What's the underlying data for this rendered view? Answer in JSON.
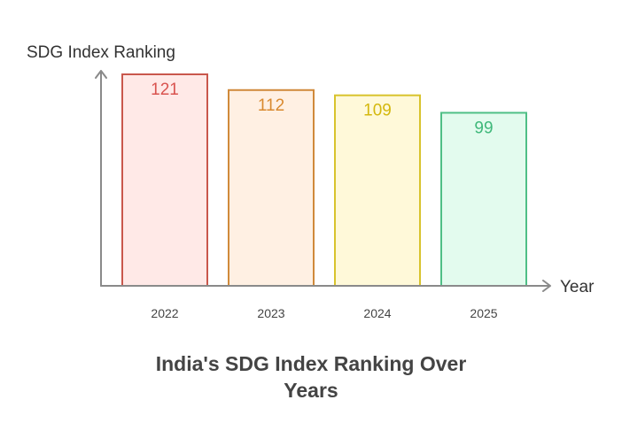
{
  "chart_data": {
    "type": "bar",
    "title_lines": [
      "India's SDG Index Ranking Over",
      "Years"
    ],
    "xlabel": "Year",
    "ylabel": "SDG Index Ranking",
    "categories": [
      "2022",
      "2023",
      "2024",
      "2025"
    ],
    "values": [
      121,
      112,
      109,
      99
    ],
    "ylim": [
      0,
      121
    ],
    "grid": false,
    "legend": "none",
    "bar_colors": [
      {
        "fill": "#ffe9e7",
        "stroke": "#c9574c",
        "label": "#d9534f"
      },
      {
        "fill": "#fff0e3",
        "stroke": "#d08a3b",
        "label": "#d9892e"
      },
      {
        "fill": "#fff9d9",
        "stroke": "#d8c32d",
        "label": "#d4b80d"
      },
      {
        "fill": "#e3fbee",
        "stroke": "#4fbf86",
        "label": "#3fb87a"
      }
    ]
  }
}
